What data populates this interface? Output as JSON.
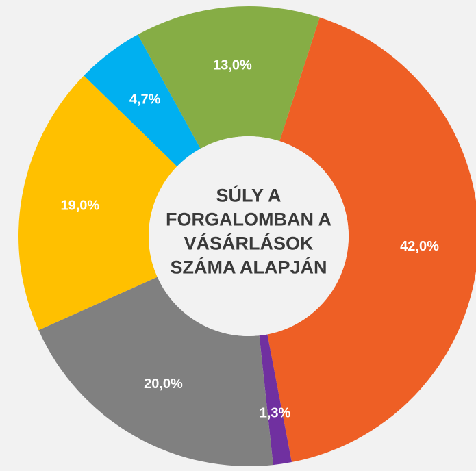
{
  "chart_data": {
    "type": "pie",
    "title": [
      "SÚLY A",
      "FORGALOMBAN A",
      "VÁSÁRLÁSOK",
      "SZÁMA ALAPJÁN"
    ],
    "categories": [
      null,
      null,
      null,
      null,
      null,
      null
    ],
    "values": [
      42.0,
      1.3,
      20.0,
      19.0,
      4.7,
      13.0
    ],
    "value_labels": [
      "42,0%",
      "1,3%",
      "20,0%",
      "19,0%",
      "4,7%",
      "13,0%"
    ],
    "colors": [
      "#ee5f25",
      "#7030a0",
      "#808080",
      "#ffc000",
      "#00b0f0",
      "#86ad45"
    ],
    "donut": true
  }
}
